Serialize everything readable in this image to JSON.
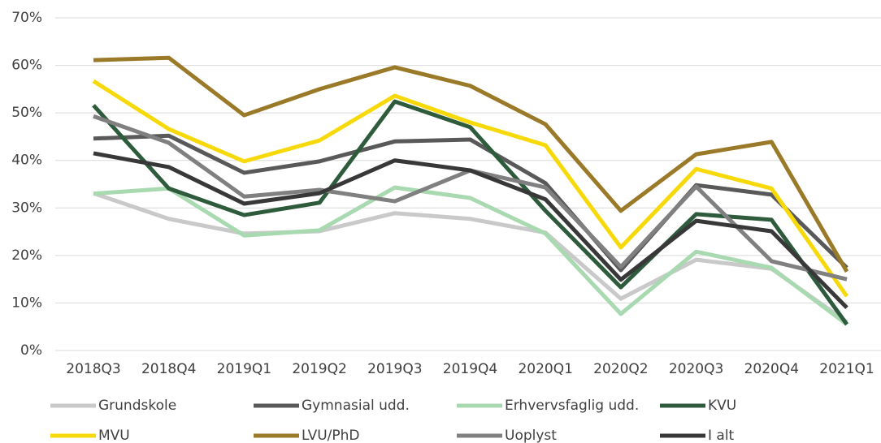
{
  "chart_data": {
    "type": "line",
    "categories": [
      "2018Q3",
      "2018Q4",
      "2019Q1",
      "2019Q2",
      "2019Q3",
      "2019Q4",
      "2020Q1",
      "2020Q2",
      "2020Q3",
      "2020Q4",
      "2021Q1"
    ],
    "ylim": [
      0,
      70
    ],
    "yticks": [
      {
        "value": 0,
        "label": "0%"
      },
      {
        "value": 10,
        "label": "10%"
      },
      {
        "value": 20,
        "label": "20%"
      },
      {
        "value": 30,
        "label": "30%"
      },
      {
        "value": 40,
        "label": "40%"
      },
      {
        "value": 50,
        "label": "50%"
      },
      {
        "value": 60,
        "label": "60%"
      },
      {
        "value": 70,
        "label": "70%"
      }
    ],
    "grid": true,
    "legend": "bottom",
    "series": [
      {
        "name": "Grundskole",
        "color": "#c9c9c9",
        "values": [
          33.1,
          27.7,
          24.6,
          25.1,
          28.9,
          27.7,
          24.8,
          10.9,
          19.1,
          17.2,
          6.0
        ]
      },
      {
        "name": "Gymnasial udd.",
        "color": "#595959",
        "values": [
          44.6,
          45.2,
          37.4,
          39.8,
          44.0,
          44.4,
          35.2,
          16.9,
          34.8,
          32.8,
          17.4
        ]
      },
      {
        "name": "Erhvervsfaglig udd.",
        "color": "#a9d9b1",
        "values": [
          33.0,
          34.1,
          24.2,
          25.3,
          34.3,
          32.1,
          24.6,
          7.7,
          20.8,
          17.4,
          5.5
        ]
      },
      {
        "name": "KVU",
        "color": "#2e5b3c",
        "values": [
          51.6,
          34.1,
          28.5,
          31.1,
          52.4,
          47.0,
          29.4,
          13.3,
          28.7,
          27.5,
          5.5
        ]
      },
      {
        "name": "MVU",
        "color": "#f7d90a",
        "values": [
          56.7,
          46.6,
          39.8,
          44.2,
          53.6,
          48.0,
          43.2,
          21.7,
          38.2,
          34.1,
          11.4
        ]
      },
      {
        "name": "LVU/PhD",
        "color": "#9a7a28",
        "values": [
          61.1,
          61.6,
          49.5,
          55.0,
          59.6,
          55.7,
          47.6,
          29.4,
          41.3,
          43.9,
          16.6
        ]
      },
      {
        "name": "Uoplyst",
        "color": "#808080",
        "values": [
          49.3,
          43.7,
          32.4,
          33.8,
          31.4,
          37.9,
          34.3,
          17.6,
          34.5,
          18.8,
          15.0
        ]
      },
      {
        "name": "I alt",
        "color": "#383838",
        "values": [
          41.5,
          38.6,
          30.9,
          33.1,
          40.0,
          37.9,
          31.8,
          14.9,
          27.3,
          25.1,
          9.0
        ]
      }
    ]
  }
}
